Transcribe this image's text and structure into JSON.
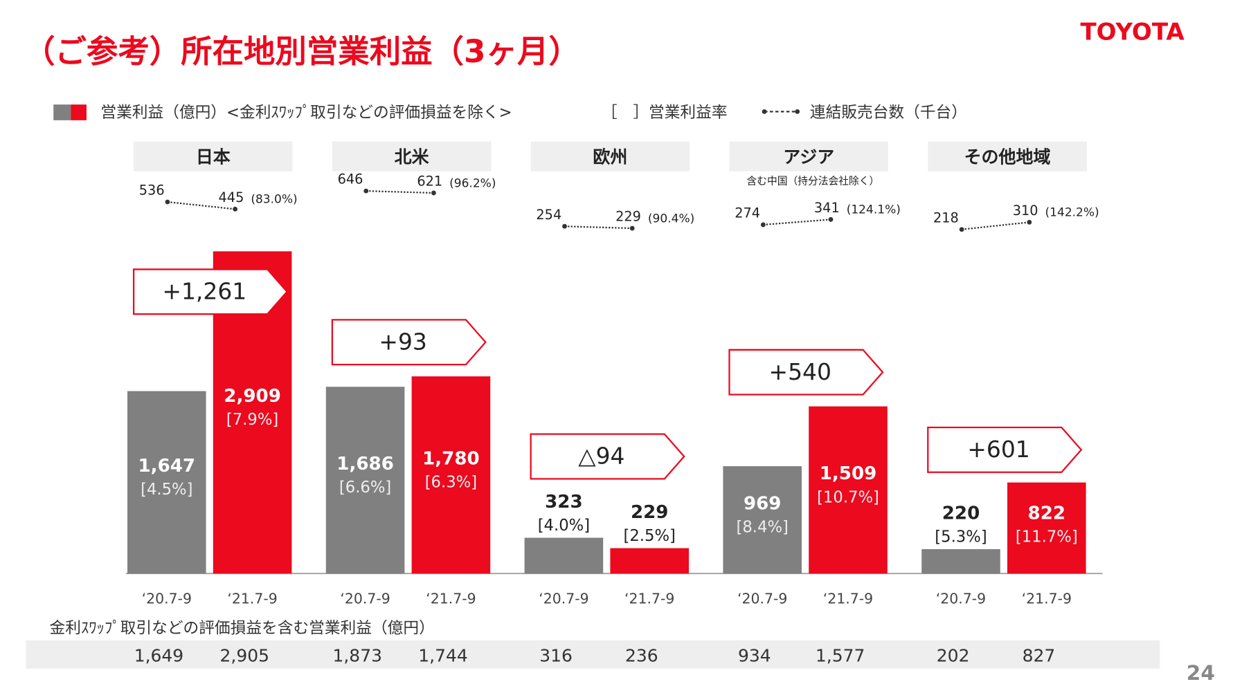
{
  "chart_data": {
    "type": "bar",
    "title": "（ご参考）所在地別営業利益（3ヶ月）",
    "brand": "TOYOTA",
    "page_number": 24,
    "legend": {
      "bars": "営業利益（億円）<金利ｽﾜｯﾌﾟ取引などの評価損益を除く>",
      "margin": "［　］営業利益率",
      "units": "連結販売台数（千台）"
    },
    "categories": [
      "日本",
      "北米",
      "欧州",
      "アジア",
      "その他地域"
    ],
    "category_notes": [
      null,
      null,
      null,
      "含む中国（持分法会社除く）",
      null
    ],
    "series": [
      {
        "name": "‘20.7-9",
        "color": "#808080",
        "values": [
          1647,
          1686,
          323,
          969,
          220
        ],
        "value_labels": [
          "1,647",
          "1,686",
          "323",
          "969",
          "220"
        ],
        "margin_labels": [
          "[4.5%]",
          "[6.6%]",
          "[4.0%]",
          "[8.4%]",
          "[5.3%]"
        ]
      },
      {
        "name": "‘21.7-9",
        "color": "#eb0a1e",
        "values": [
          2909,
          1780,
          229,
          1509,
          822
        ],
        "value_labels": [
          "2,909",
          "1,780",
          "229",
          "1,509",
          "822"
        ],
        "margin_labels": [
          "[7.9%]",
          "[6.3%]",
          "[2.5%]",
          "[10.7%]",
          "[11.7%]"
        ]
      }
    ],
    "differences": {
      "values": [
        1261,
        93,
        -94,
        540,
        601
      ],
      "value_labels": [
        "+1,261",
        "+93",
        "△94",
        "+540",
        "+601"
      ]
    },
    "unit_sales": {
      "series": [
        {
          "values": [
            536,
            646,
            254,
            274,
            218
          ]
        },
        {
          "values": [
            445,
            621,
            229,
            341,
            310
          ],
          "ratio_labels": [
            "(83.0%)",
            "(96.2%)",
            "(90.4%)",
            "(124.1%)",
            "(142.2%)"
          ]
        }
      ]
    },
    "incl_swap": {
      "title": "金利ｽﾜｯﾌﾟ取引などの評価損益を含む営業利益（億円）",
      "rows": [
        [
          "1,649",
          "1,873",
          "316",
          "934",
          "202"
        ],
        [
          "2,905",
          "1,744",
          "236",
          "1,577",
          "827"
        ]
      ]
    }
  }
}
